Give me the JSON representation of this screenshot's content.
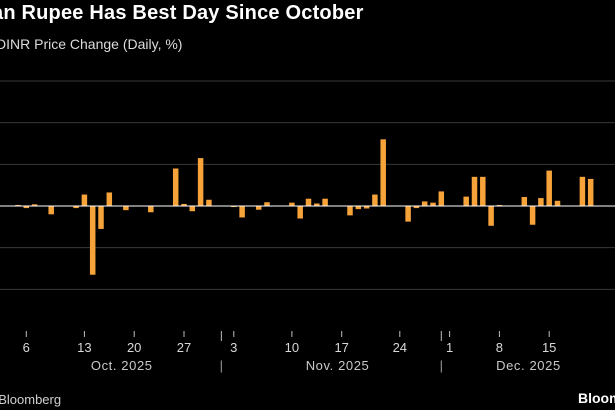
{
  "header": {
    "title": "an Rupee Has Best Day Since October",
    "subtitle": "DINR Price Change (Daily, %)"
  },
  "footer": {
    "source": ": Bloomberg",
    "brand": "Bloom"
  },
  "colors": {
    "bar": "#f6a33a",
    "background": "#000000",
    "grid": "#3a3a3a",
    "zero": "#ffffff"
  },
  "chart_data": {
    "type": "bar",
    "title": "an Rupee Has Best Day Since October",
    "ylabel": "DINR Price Change (Daily, %)",
    "xlabel": "",
    "ylim": [
      -0.6,
      0.6
    ],
    "gridlines_at": [
      -0.4,
      -0.2,
      0.2,
      0.4
    ],
    "x_tick_labels": [
      {
        "label": "6",
        "index": 1
      },
      {
        "label": "13",
        "index": 8
      },
      {
        "label": "20",
        "index": 14
      },
      {
        "label": "27",
        "index": 20
      },
      {
        "label": "3",
        "index": 26
      },
      {
        "label": "10",
        "index": 33
      },
      {
        "label": "17",
        "index": 39
      },
      {
        "label": "24",
        "index": 46
      },
      {
        "label": "1",
        "index": 52
      },
      {
        "label": "8",
        "index": 58
      },
      {
        "label": "15",
        "index": 64
      }
    ],
    "month_labels": [
      {
        "label": "Oct. 2025",
        "index": 12.5
      },
      {
        "label": "Nov. 2025",
        "index": 38.5
      },
      {
        "label": "Dec. 2025",
        "index": 61.5
      }
    ],
    "month_separator": "|",
    "month_separators_at": [
      24.5,
      51
    ],
    "values": [
      0.005,
      -0.01,
      0.008,
      0.0,
      -0.04,
      0.0,
      0.0,
      -0.01,
      0.055,
      -0.33,
      -0.11,
      0.065,
      0.0,
      -0.02,
      0.0,
      0.0,
      -0.03,
      0.0,
      0.0,
      0.18,
      0.01,
      -0.025,
      0.23,
      0.03,
      0.0,
      0.0,
      -0.005,
      -0.055,
      0.0,
      -0.018,
      0.018,
      0.0,
      0.0,
      0.016,
      -0.06,
      0.035,
      0.012,
      0.035,
      0.0,
      0.0,
      -0.045,
      -0.015,
      -0.012,
      0.055,
      0.32,
      0.0,
      0.0,
      -0.075,
      -0.01,
      0.022,
      0.016,
      0.07,
      0.0,
      0.0,
      0.045,
      0.14,
      0.14,
      -0.095,
      0.005,
      0.0,
      0.0,
      0.043,
      -0.09,
      0.038,
      0.17,
      0.025,
      0.0,
      0.0,
      0.14,
      0.13
    ]
  }
}
